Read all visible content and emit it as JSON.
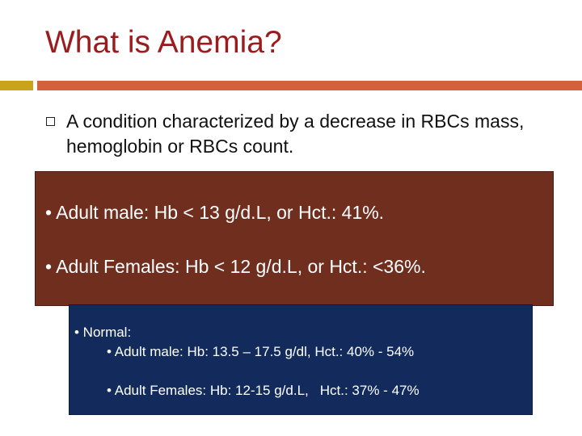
{
  "slide": {
    "title": "What is Anemia?",
    "bullet": {
      "icon": "square-bullet-icon",
      "text": "A condition characterized by a decrease in RBCs mass, hemoglobin or RBCs count."
    },
    "criteria_box": {
      "color": "#6f2e1e",
      "lines": [
        "• Adult male: Hb < 13 g/d.L,  or Hct.: 41%.",
        "• Adult Females: Hb < 12 g/d.L,  or Hct.: <36%."
      ]
    },
    "normal_box": {
      "color": "#122b5c",
      "heading": "• Normal:",
      "male": "• Adult male: Hb: 13.5 – 17.5 g/dl, Hct.: 40% - 54%",
      "female_hb": "• Adult Females: Hb: 12-15 g/d.L,",
      "female_hct": "Hct.: 37% - 47%"
    },
    "accent_colors": {
      "left": "#c9a31a",
      "right": "#d4603c",
      "title": "#9b1c1c"
    }
  }
}
